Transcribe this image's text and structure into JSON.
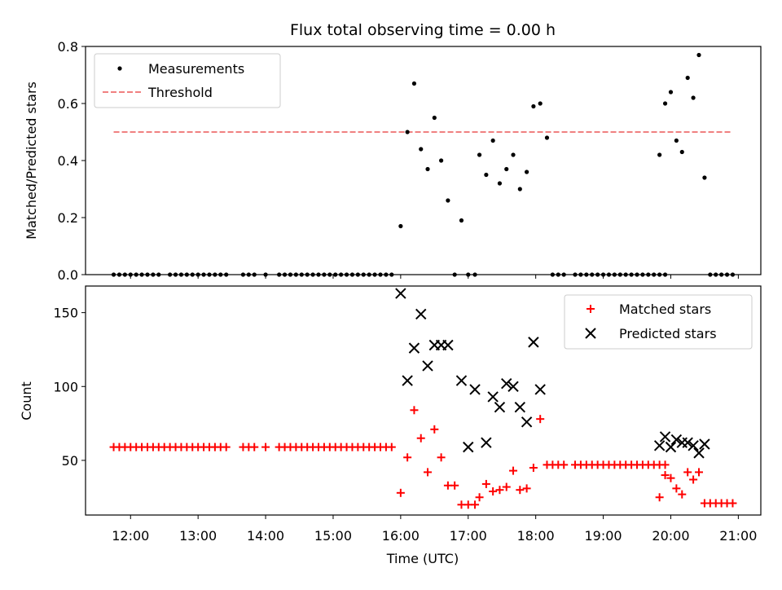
{
  "figure": {
    "title": "Flux total observing time = 0.00 h",
    "xlabel": "Time (UTC)"
  },
  "chart_data": [
    {
      "type": "scatter",
      "panel": "top",
      "ylabel": "Matched/Predicted stars",
      "xlim": [
        "11:20",
        "21:20"
      ],
      "ylim": [
        0,
        0.8
      ],
      "yticks": [
        "0.0",
        "0.2",
        "0.4",
        "0.6",
        "0.8"
      ],
      "legend": {
        "placement": "top-left",
        "entries": [
          "Measurements",
          "Threshold"
        ]
      },
      "threshold": {
        "name": "Threshold",
        "y": 0.5,
        "x_range": [
          "11:45",
          "20:55"
        ],
        "color": "#f08080"
      },
      "series": [
        {
          "name": "Measurements",
          "color": "#000000",
          "points": [
            [
              "11:45",
              0
            ],
            [
              "11:50",
              0
            ],
            [
              "11:55",
              0
            ],
            [
              "12:00",
              0
            ],
            [
              "12:05",
              0
            ],
            [
              "12:10",
              0
            ],
            [
              "12:15",
              0
            ],
            [
              "12:20",
              0
            ],
            [
              "12:25",
              0
            ],
            [
              "12:35",
              0
            ],
            [
              "12:40",
              0
            ],
            [
              "12:45",
              0
            ],
            [
              "12:50",
              0
            ],
            [
              "12:55",
              0
            ],
            [
              "13:00",
              0
            ],
            [
              "13:05",
              0
            ],
            [
              "13:10",
              0
            ],
            [
              "13:15",
              0
            ],
            [
              "13:20",
              0
            ],
            [
              "13:25",
              0
            ],
            [
              "13:40",
              0
            ],
            [
              "13:45",
              0
            ],
            [
              "13:50",
              0
            ],
            [
              "14:00",
              0
            ],
            [
              "14:12",
              0
            ],
            [
              "14:17",
              0
            ],
            [
              "14:22",
              0
            ],
            [
              "14:27",
              0
            ],
            [
              "14:32",
              0
            ],
            [
              "14:37",
              0
            ],
            [
              "14:42",
              0
            ],
            [
              "14:47",
              0
            ],
            [
              "14:52",
              0
            ],
            [
              "14:57",
              0
            ],
            [
              "15:02",
              0
            ],
            [
              "15:07",
              0
            ],
            [
              "15:12",
              0
            ],
            [
              "15:17",
              0
            ],
            [
              "15:22",
              0
            ],
            [
              "15:27",
              0
            ],
            [
              "15:32",
              0
            ],
            [
              "15:37",
              0
            ],
            [
              "15:42",
              0
            ],
            [
              "15:47",
              0
            ],
            [
              "15:52",
              0
            ],
            [
              "16:00",
              0.17
            ],
            [
              "16:06",
              0.5
            ],
            [
              "16:12",
              0.67
            ],
            [
              "16:18",
              0.44
            ],
            [
              "16:24",
              0.37
            ],
            [
              "16:30",
              0.55
            ],
            [
              "16:36",
              0.4
            ],
            [
              "16:42",
              0.26
            ],
            [
              "16:48",
              0
            ],
            [
              "16:54",
              0.19
            ],
            [
              "17:00",
              0
            ],
            [
              "17:06",
              0
            ],
            [
              "17:10",
              0.42
            ],
            [
              "17:16",
              0.35
            ],
            [
              "17:22",
              0.47
            ],
            [
              "17:28",
              0.32
            ],
            [
              "17:34",
              0.37
            ],
            [
              "17:40",
              0.42
            ],
            [
              "17:46",
              0.3
            ],
            [
              "17:52",
              0.36
            ],
            [
              "17:58",
              0.59
            ],
            [
              "18:04",
              0.6
            ],
            [
              "18:10",
              0.48
            ],
            [
              "18:15",
              0
            ],
            [
              "18:20",
              0
            ],
            [
              "18:25",
              0
            ],
            [
              "18:35",
              0
            ],
            [
              "18:40",
              0
            ],
            [
              "18:45",
              0
            ],
            [
              "18:50",
              0
            ],
            [
              "18:55",
              0
            ],
            [
              "19:00",
              0
            ],
            [
              "19:05",
              0
            ],
            [
              "19:10",
              0
            ],
            [
              "19:15",
              0
            ],
            [
              "19:20",
              0
            ],
            [
              "19:25",
              0
            ],
            [
              "19:30",
              0
            ],
            [
              "19:35",
              0
            ],
            [
              "19:40",
              0
            ],
            [
              "19:45",
              0
            ],
            [
              "19:50",
              0
            ],
            [
              "19:55",
              0
            ],
            [
              "19:50",
              0.42
            ],
            [
              "19:55",
              0.6
            ],
            [
              "20:00",
              0.64
            ],
            [
              "20:05",
              0.47
            ],
            [
              "20:10",
              0.43
            ],
            [
              "20:15",
              0.69
            ],
            [
              "20:20",
              0.62
            ],
            [
              "20:25",
              0.77
            ],
            [
              "20:30",
              0.34
            ],
            [
              "20:35",
              0
            ],
            [
              "20:40",
              0
            ],
            [
              "20:45",
              0
            ],
            [
              "20:50",
              0
            ],
            [
              "20:55",
              0
            ]
          ]
        }
      ]
    },
    {
      "type": "scatter",
      "panel": "bottom",
      "ylabel": "Count",
      "xlim": [
        "11:20",
        "21:20"
      ],
      "ylim": [
        13,
        168
      ],
      "yticks": [
        "50",
        "100",
        "150"
      ],
      "xticks": [
        "12:00",
        "13:00",
        "14:00",
        "15:00",
        "16:00",
        "17:00",
        "18:00",
        "19:00",
        "20:00",
        "21:00"
      ],
      "legend": {
        "placement": "top-right",
        "entries": [
          "Matched stars",
          "Predicted stars"
        ]
      },
      "series": [
        {
          "name": "Matched stars",
          "marker": "plus",
          "color": "#ff0000",
          "points": [
            [
              "11:45",
              59
            ],
            [
              "11:50",
              59
            ],
            [
              "11:55",
              59
            ],
            [
              "12:00",
              59
            ],
            [
              "12:05",
              59
            ],
            [
              "12:10",
              59
            ],
            [
              "12:15",
              59
            ],
            [
              "12:20",
              59
            ],
            [
              "12:25",
              59
            ],
            [
              "12:30",
              59
            ],
            [
              "12:35",
              59
            ],
            [
              "12:40",
              59
            ],
            [
              "12:45",
              59
            ],
            [
              "12:50",
              59
            ],
            [
              "12:55",
              59
            ],
            [
              "13:00",
              59
            ],
            [
              "13:05",
              59
            ],
            [
              "13:10",
              59
            ],
            [
              "13:15",
              59
            ],
            [
              "13:20",
              59
            ],
            [
              "13:25",
              59
            ],
            [
              "13:40",
              59
            ],
            [
              "13:45",
              59
            ],
            [
              "13:50",
              59
            ],
            [
              "14:00",
              59
            ],
            [
              "14:12",
              59
            ],
            [
              "14:17",
              59
            ],
            [
              "14:22",
              59
            ],
            [
              "14:27",
              59
            ],
            [
              "14:32",
              59
            ],
            [
              "14:37",
              59
            ],
            [
              "14:42",
              59
            ],
            [
              "14:47",
              59
            ],
            [
              "14:52",
              59
            ],
            [
              "14:57",
              59
            ],
            [
              "15:02",
              59
            ],
            [
              "15:07",
              59
            ],
            [
              "15:12",
              59
            ],
            [
              "15:17",
              59
            ],
            [
              "15:22",
              59
            ],
            [
              "15:27",
              59
            ],
            [
              "15:32",
              59
            ],
            [
              "15:37",
              59
            ],
            [
              "15:42",
              59
            ],
            [
              "15:47",
              59
            ],
            [
              "15:52",
              59
            ],
            [
              "16:00",
              28
            ],
            [
              "16:06",
              52
            ],
            [
              "16:12",
              84
            ],
            [
              "16:18",
              65
            ],
            [
              "16:24",
              42
            ],
            [
              "16:30",
              71
            ],
            [
              "16:36",
              52
            ],
            [
              "16:42",
              33
            ],
            [
              "16:48",
              33
            ],
            [
              "16:54",
              20
            ],
            [
              "17:00",
              20
            ],
            [
              "17:06",
              20
            ],
            [
              "17:10",
              25
            ],
            [
              "17:16",
              34
            ],
            [
              "17:22",
              29
            ],
            [
              "17:28",
              30
            ],
            [
              "17:34",
              32
            ],
            [
              "17:40",
              43
            ],
            [
              "17:46",
              30
            ],
            [
              "17:52",
              31
            ],
            [
              "17:58",
              45
            ],
            [
              "18:04",
              78
            ],
            [
              "18:10",
              47
            ],
            [
              "18:15",
              47
            ],
            [
              "18:20",
              47
            ],
            [
              "18:25",
              47
            ],
            [
              "18:35",
              47
            ],
            [
              "18:40",
              47
            ],
            [
              "18:45",
              47
            ],
            [
              "18:50",
              47
            ],
            [
              "18:55",
              47
            ],
            [
              "19:00",
              47
            ],
            [
              "19:05",
              47
            ],
            [
              "19:10",
              47
            ],
            [
              "19:15",
              47
            ],
            [
              "19:20",
              47
            ],
            [
              "19:25",
              47
            ],
            [
              "19:30",
              47
            ],
            [
              "19:35",
              47
            ],
            [
              "19:40",
              47
            ],
            [
              "19:45",
              47
            ],
            [
              "19:50",
              47
            ],
            [
              "19:55",
              47
            ],
            [
              "19:50",
              25
            ],
            [
              "19:55",
              40
            ],
            [
              "20:00",
              38
            ],
            [
              "20:05",
              31
            ],
            [
              "20:10",
              27
            ],
            [
              "20:15",
              42
            ],
            [
              "20:20",
              37
            ],
            [
              "20:25",
              42
            ],
            [
              "20:30",
              21
            ],
            [
              "20:35",
              21
            ],
            [
              "20:40",
              21
            ],
            [
              "20:45",
              21
            ],
            [
              "20:50",
              21
            ],
            [
              "20:55",
              21
            ]
          ]
        },
        {
          "name": "Predicted stars",
          "marker": "x",
          "color": "#000000",
          "points": [
            [
              "16:00",
              163
            ],
            [
              "16:06",
              104
            ],
            [
              "16:12",
              126
            ],
            [
              "16:18",
              149
            ],
            [
              "16:24",
              114
            ],
            [
              "16:30",
              128
            ],
            [
              "16:36",
              128
            ],
            [
              "16:42",
              128
            ],
            [
              "16:54",
              104
            ],
            [
              "17:00",
              59
            ],
            [
              "17:06",
              98
            ],
            [
              "17:16",
              62
            ],
            [
              "17:22",
              93
            ],
            [
              "17:28",
              86
            ],
            [
              "17:34",
              102
            ],
            [
              "17:40",
              100
            ],
            [
              "17:46",
              86
            ],
            [
              "17:52",
              76
            ],
            [
              "17:58",
              130
            ],
            [
              "18:04",
              98
            ],
            [
              "19:50",
              60
            ],
            [
              "19:55",
              66
            ],
            [
              "20:00",
              59
            ],
            [
              "20:05",
              64
            ],
            [
              "20:10",
              62
            ],
            [
              "20:15",
              62
            ],
            [
              "20:20",
              60
            ],
            [
              "20:25",
              55
            ],
            [
              "20:30",
              61
            ]
          ]
        }
      ]
    }
  ]
}
